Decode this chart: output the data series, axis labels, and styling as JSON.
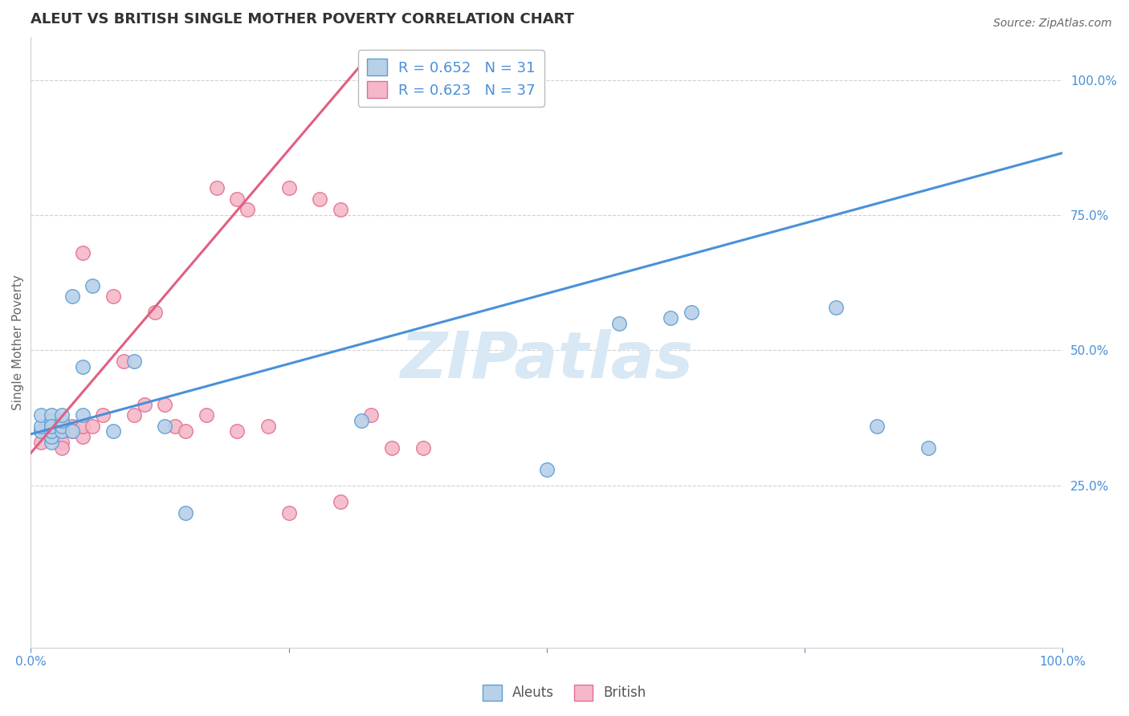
{
  "title": "ALEUT VS BRITISH SINGLE MOTHER POVERTY CORRELATION CHART",
  "source": "Source: ZipAtlas.com",
  "ylabel": "Single Mother Poverty",
  "xlim": [
    0,
    1
  ],
  "ylim": [
    -0.05,
    1.08
  ],
  "xtick_positions": [
    0,
    0.25,
    0.5,
    0.75,
    1.0
  ],
  "xtick_labels": [
    "0.0%",
    "",
    "",
    "",
    "100.0%"
  ],
  "ytick_positions": [
    0.25,
    0.5,
    0.75,
    1.0
  ],
  "ytick_labels": [
    "25.0%",
    "50.0%",
    "75.0%",
    "100.0%"
  ],
  "blue_R": 0.652,
  "blue_N": 31,
  "pink_R": 0.623,
  "pink_N": 37,
  "blue_face_color": "#b8d0e8",
  "blue_edge_color": "#5a9fd4",
  "pink_face_color": "#f4b8c8",
  "pink_edge_color": "#e07090",
  "blue_line_color": "#4a90d9",
  "pink_line_color": "#e06080",
  "watermark_color": "#d8e8f4",
  "grid_color": "#d0d0d0",
  "bg_color": "#ffffff",
  "axis_color": "#4a90d9",
  "title_color": "#333333",
  "source_color": "#666666",
  "ylabel_color": "#666666",
  "legend_label_blue": "Aleuts",
  "legend_label_pink": "British",
  "blue_scatter_x": [
    0.01,
    0.01,
    0.01,
    0.02,
    0.02,
    0.02,
    0.02,
    0.02,
    0.02,
    0.02,
    0.03,
    0.03,
    0.03,
    0.03,
    0.04,
    0.04,
    0.05,
    0.05,
    0.06,
    0.08,
    0.1,
    0.13,
    0.15,
    0.32,
    0.5,
    0.57,
    0.62,
    0.64,
    0.78,
    0.82,
    0.87
  ],
  "blue_scatter_y": [
    0.35,
    0.36,
    0.38,
    0.33,
    0.34,
    0.36,
    0.37,
    0.38,
    0.35,
    0.36,
    0.35,
    0.36,
    0.37,
    0.38,
    0.35,
    0.6,
    0.47,
    0.38,
    0.62,
    0.35,
    0.48,
    0.36,
    0.2,
    0.37,
    0.28,
    0.55,
    0.56,
    0.57,
    0.58,
    0.36,
    0.32
  ],
  "pink_scatter_x": [
    0.01,
    0.01,
    0.02,
    0.02,
    0.02,
    0.03,
    0.03,
    0.03,
    0.04,
    0.04,
    0.05,
    0.05,
    0.05,
    0.06,
    0.07,
    0.08,
    0.09,
    0.1,
    0.11,
    0.12,
    0.13,
    0.14,
    0.15,
    0.17,
    0.2,
    0.23,
    0.25,
    0.3,
    0.33,
    0.35,
    0.38,
    0.18,
    0.2,
    0.21,
    0.25,
    0.28,
    0.3
  ],
  "pink_scatter_y": [
    0.35,
    0.33,
    0.35,
    0.36,
    0.34,
    0.35,
    0.33,
    0.32,
    0.36,
    0.35,
    0.34,
    0.36,
    0.68,
    0.36,
    0.38,
    0.6,
    0.48,
    0.38,
    0.4,
    0.57,
    0.4,
    0.36,
    0.35,
    0.38,
    0.35,
    0.36,
    0.2,
    0.22,
    0.38,
    0.32,
    0.32,
    0.8,
    0.78,
    0.76,
    0.8,
    0.78,
    0.76
  ],
  "blue_line_x": [
    0.0,
    1.0
  ],
  "blue_line_y": [
    0.345,
    0.865
  ],
  "pink_line_x": [
    0.0,
    0.33
  ],
  "pink_line_y": [
    0.31,
    1.05
  ],
  "title_fontsize": 13,
  "source_fontsize": 10,
  "tick_fontsize": 11,
  "ylabel_fontsize": 11,
  "legend_fontsize": 13,
  "marker_size": 160,
  "line_width": 2.2
}
